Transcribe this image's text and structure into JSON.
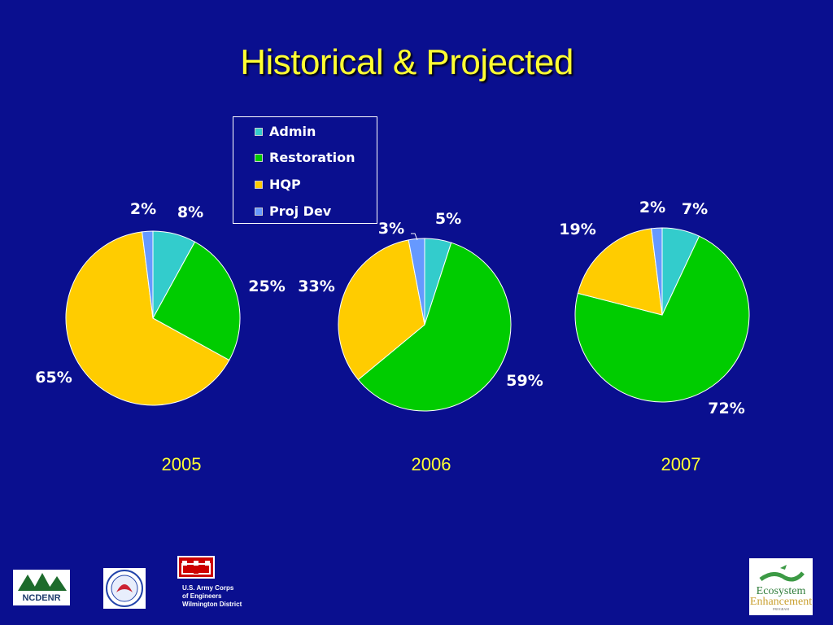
{
  "title": "Historical & Projected",
  "legend": [
    {
      "label": "Admin",
      "color": "#33cccc"
    },
    {
      "label": "Restoration",
      "color": "#00cc00"
    },
    {
      "label": "HQP",
      "color": "#ffcc00"
    },
    {
      "label": "Proj Dev",
      "color": "#6699ff"
    }
  ],
  "chart_data": [
    {
      "type": "pie",
      "categories": [
        "Admin",
        "Restoration",
        "HQP",
        "Proj Dev"
      ],
      "values": [
        8,
        25,
        65,
        2
      ],
      "labels": [
        "8%",
        "25%",
        "65%",
        "2%"
      ],
      "xlabel": "2005"
    },
    {
      "type": "pie",
      "categories": [
        "Admin",
        "Restoration",
        "HQP",
        "Proj Dev"
      ],
      "values": [
        5,
        59,
        33,
        3
      ],
      "labels": [
        "5%",
        "59%",
        "33%",
        "3%"
      ],
      "xlabel": "2006"
    },
    {
      "type": "pie",
      "categories": [
        "Admin",
        "Restoration",
        "HQP",
        "Proj Dev"
      ],
      "values": [
        7,
        72,
        19,
        2
      ],
      "labels": [
        "7%",
        "72%",
        "19%",
        "2%"
      ],
      "xlabel": "2007"
    }
  ],
  "footer": {
    "logo_left": "NCDENR",
    "usace_text": [
      "U.S. Army Corps",
      "of Engineers",
      "Wilmington District"
    ],
    "logo_right_line1": "Ecosystem",
    "logo_right_line2": "Enhancement",
    "logo_right_line3": "PROGRAM"
  }
}
